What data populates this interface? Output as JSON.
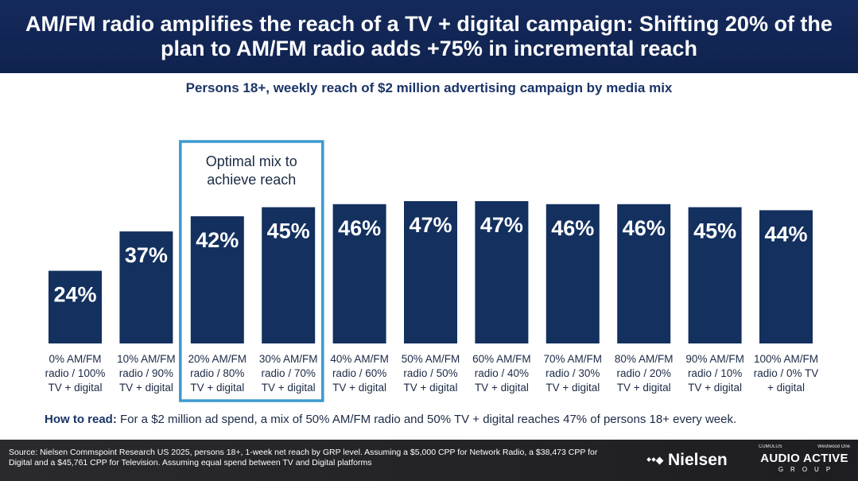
{
  "header": {
    "title": "AM/FM radio amplifies the reach of a TV + digital campaign: Shifting 20% of the plan to AM/FM radio adds +75% in incremental reach"
  },
  "chart_data": {
    "type": "bar",
    "title": "Persons 18+, weekly reach of $2 million advertising campaign by media mix",
    "categories": [
      [
        "0% AM/FM",
        "radio / 100%",
        "TV + digital"
      ],
      [
        "10% AM/FM",
        "radio / 90%",
        "TV + digital"
      ],
      [
        "20% AM/FM",
        "radio / 80%",
        "TV + digital"
      ],
      [
        "30% AM/FM",
        "radio / 70%",
        "TV + digital"
      ],
      [
        "40% AM/FM",
        "radio / 60%",
        "TV + digital"
      ],
      [
        "50% AM/FM",
        "radio / 50%",
        "TV + digital"
      ],
      [
        "60% AM/FM",
        "radio / 40%",
        "TV + digital"
      ],
      [
        "70% AM/FM",
        "radio / 30%",
        "TV + digital"
      ],
      [
        "80% AM/FM",
        "radio / 20%",
        "TV + digital"
      ],
      [
        "90% AM/FM",
        "radio / 10%",
        "TV + digital"
      ],
      [
        "100% AM/FM",
        "radio / 0% TV",
        "+ digital"
      ]
    ],
    "values": [
      24,
      37,
      42,
      45,
      46,
      47,
      47,
      46,
      46,
      45,
      44
    ],
    "value_labels": [
      "24%",
      "37%",
      "42%",
      "45%",
      "46%",
      "47%",
      "47%",
      "46%",
      "46%",
      "45%",
      "44%"
    ],
    "ylim": [
      0,
      47
    ],
    "bar_color": "#13305f",
    "grid": false,
    "annotation": {
      "text": [
        "Optimal mix to",
        "achieve reach"
      ],
      "highlight_index": 2,
      "color": "#3d9ad1"
    }
  },
  "how_to_read": {
    "label": "How to read:",
    "text": " For a $2 million ad spend, a mix of 50% AM/FM radio and 50% TV + digital reaches 47% of persons 18+ every week."
  },
  "footer": {
    "source": "Source: Nielsen Commspoint Research US 2025, persons 18+, 1-week net reach by GRP level. Assuming a $5,000 CPP for Network Radio, a $38,473 CPP for Digital and a $45,761 CPP for Television. Assuming equal spend between TV and Digital platforms",
    "nielsen_logo": "Nielsen",
    "cumulus_logo": "CUMULUS",
    "westwood_logo": "Westwood One",
    "aag_main": "AUDIO ACTIVE",
    "aag_sub": "GROUP"
  }
}
